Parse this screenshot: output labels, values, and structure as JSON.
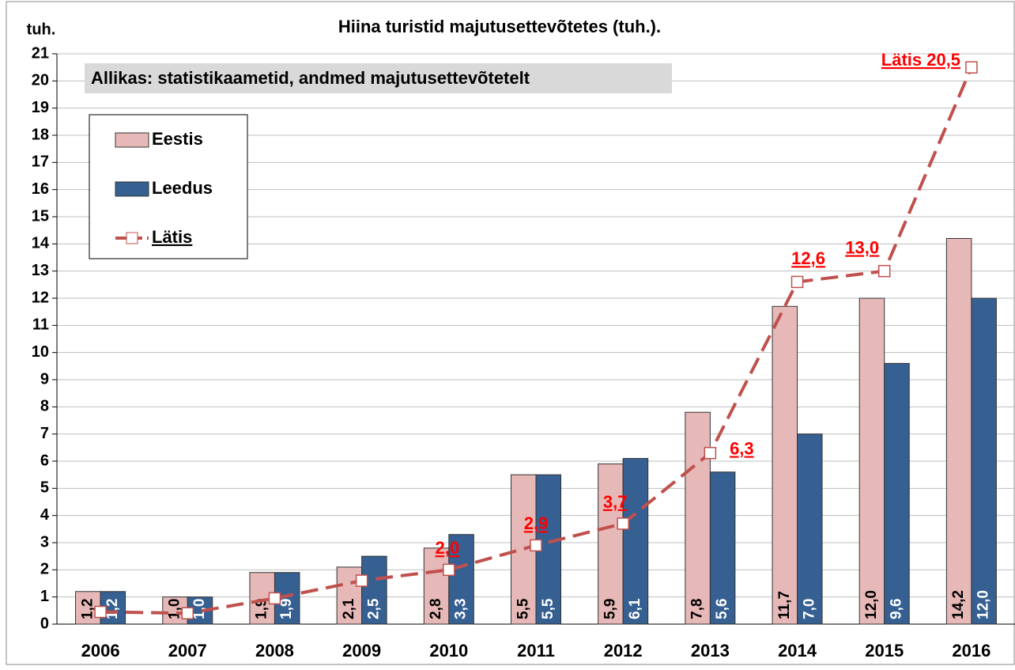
{
  "chart_data": {
    "type": "bar",
    "title": "Hiina turistid majutusettevõtetes (tuh.).",
    "y_label": "tuh.",
    "annotation": "Allikas: statistikaametid, andmed majutusettevõtetelt",
    "categories": [
      "2006",
      "2007",
      "2008",
      "2009",
      "2010",
      "2011",
      "2012",
      "2013",
      "2014",
      "2015",
      "2016"
    ],
    "series": [
      {
        "name": "Eestis",
        "type": "bar",
        "color": "#e6b9b8",
        "values": [
          1.2,
          1.0,
          1.9,
          2.1,
          2.8,
          5.5,
          5.9,
          7.8,
          11.7,
          12.0,
          14.2
        ],
        "value_labels": [
          "1,2",
          "1,0",
          "1,9",
          "2,1",
          "2,8",
          "5,5",
          "5,9",
          "7,8",
          "11,7",
          "12,0",
          "14,2"
        ]
      },
      {
        "name": "Leedus",
        "type": "bar",
        "color": "#366092",
        "values": [
          1.2,
          1.0,
          1.9,
          2.5,
          3.3,
          5.5,
          6.1,
          5.6,
          7.0,
          9.6,
          12.0
        ],
        "value_labels": [
          "1,2",
          "1,0",
          "1,9",
          "2,5",
          "3,3",
          "5,5",
          "6,1",
          "5,6",
          "7,0",
          "9,6",
          "12,0"
        ]
      },
      {
        "name": "Lätis",
        "type": "line",
        "color": "#c0504d",
        "values": [
          0.45,
          0.4,
          0.95,
          1.6,
          2.0,
          2.9,
          3.7,
          6.3,
          12.6,
          13.0,
          20.5
        ],
        "value_labels": [
          null,
          null,
          null,
          null,
          "2,0",
          "2,9",
          "3,7",
          "6,3",
          "12,6",
          "13,0",
          "Lätis 20,5"
        ]
      }
    ],
    "ylim": [
      0,
      21
    ],
    "yticks": [
      0,
      1,
      2,
      3,
      4,
      5,
      6,
      7,
      8,
      9,
      10,
      11,
      12,
      13,
      14,
      15,
      16,
      17,
      18,
      19,
      20,
      21
    ],
    "grid": true,
    "legend": "upper left"
  }
}
